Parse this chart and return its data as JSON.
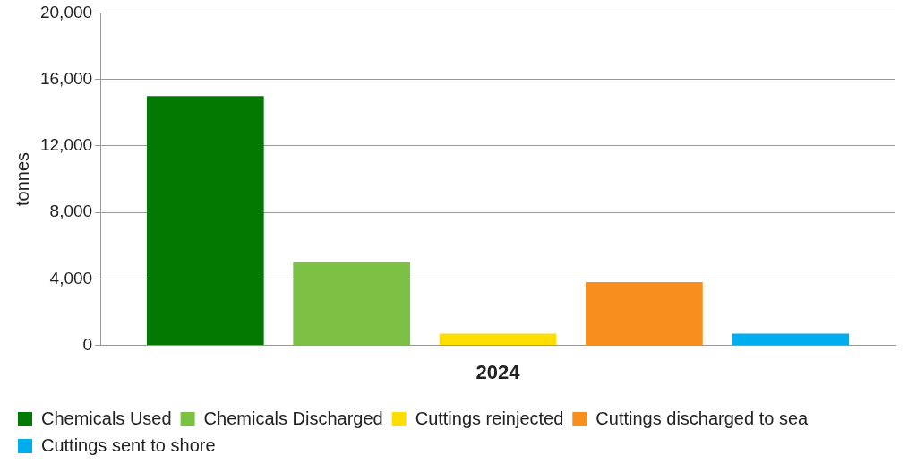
{
  "chart_data": {
    "type": "bar",
    "categories": [
      "2024"
    ],
    "ylabel": "tonnes",
    "ylim": [
      0,
      20000
    ],
    "yticks": [
      0,
      {
        "value": 4000,
        "label": "4,000"
      },
      {
        "value": 8000,
        "label": "8,000"
      },
      {
        "value": 12000,
        "label": "12,000"
      },
      {
        "value": 16000,
        "label": "16,000"
      },
      {
        "value": 20000,
        "label": "20,000"
      }
    ],
    "grid": "y",
    "legend": "bottom",
    "series": [
      {
        "name": "Chemicals Used",
        "color": "#027a02",
        "values": [
          15000
        ]
      },
      {
        "name": "Chemicals Discharged",
        "color": "#7cc044",
        "values": [
          5000
        ]
      },
      {
        "name": "Cuttings reinjected",
        "color": "#fedd00",
        "values": [
          700
        ]
      },
      {
        "name": "Cuttings discharged to sea",
        "color": "#f78e1e",
        "values": [
          3800
        ]
      },
      {
        "name": "Cuttings sent to shore",
        "color": "#00adee",
        "values": [
          700
        ]
      }
    ]
  }
}
